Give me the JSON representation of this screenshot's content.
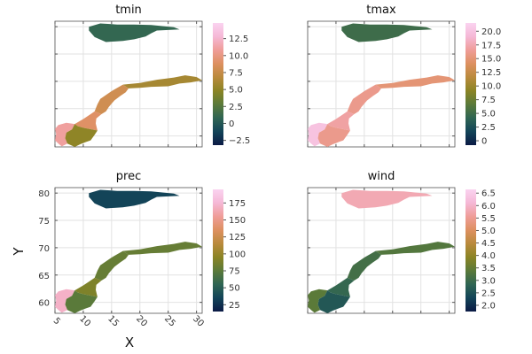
{
  "figure": {
    "xlabel": "X",
    "ylabel": "Y"
  },
  "colorscale": [
    "#0b1a45",
    "#134458",
    "#2f6553",
    "#5a7a3a",
    "#8a8425",
    "#b98a3c",
    "#dd9060",
    "#ef9d98",
    "#f5b8d6",
    "#fad3f0"
  ],
  "chart_data": [
    {
      "type": "heatmap",
      "title": "tmin",
      "xlim": [
        5,
        31
      ],
      "ylim": [
        58,
        81
      ],
      "colorbar": {
        "range": [
          -3.2,
          14.8
        ],
        "ticks": [
          -2.5,
          0,
          2.5,
          5,
          7.5,
          10,
          12.5
        ],
        "tick_labels": [
          "−2.5",
          "0",
          "2.5",
          "5.0",
          "7.5",
          "10.0",
          "12.5"
        ]
      },
      "value_by_region": {
        "svalbard": 1,
        "far_north": 6,
        "north": 8,
        "middle": 9,
        "south_coast": 11,
        "south_inland": 5
      }
    },
    {
      "type": "heatmap",
      "title": "tmax",
      "xlim": [
        5,
        31
      ],
      "ylim": [
        58,
        81
      ],
      "colorbar": {
        "range": [
          -0.8,
          21.5
        ],
        "ticks": [
          0,
          2.5,
          5,
          7.5,
          10,
          12.5,
          15,
          17.5,
          20
        ],
        "tick_labels": [
          "0",
          "2.5",
          "5.0",
          "7.5",
          "10.0",
          "12.5",
          "15.0",
          "17.5",
          "20.0"
        ]
      },
      "value_by_region": {
        "svalbard": 5,
        "far_north": 15,
        "north": 16,
        "middle": 17,
        "south_coast": 20,
        "south_inland": 16
      }
    },
    {
      "type": "heatmap",
      "title": "prec",
      "xlim": [
        5,
        31
      ],
      "ylim": [
        58,
        81
      ],
      "colorbar": {
        "range": [
          15,
          195
        ],
        "ticks": [
          25,
          50,
          75,
          100,
          125,
          150,
          175
        ],
        "tick_labels": [
          "25",
          "50",
          "75",
          "100",
          "125",
          "150",
          "175"
        ]
      },
      "value_by_region": {
        "svalbard": 35,
        "far_north": 80,
        "north": 80,
        "middle": 90,
        "south_coast": 170,
        "south_inland": 75
      },
      "xticks": [
        5,
        10,
        15,
        20,
        25,
        30
      ],
      "xtick_labels": [
        "5",
        "10",
        "15",
        "20",
        "25",
        "30"
      ],
      "yticks": [
        60,
        65,
        70,
        75,
        80
      ],
      "ytick_labels": [
        "60",
        "65",
        "70",
        "75",
        "80"
      ]
    },
    {
      "type": "heatmap",
      "title": "wind",
      "xlim": [
        5,
        31
      ],
      "ylim": [
        58,
        81
      ],
      "colorbar": {
        "range": [
          1.75,
          6.65
        ],
        "ticks": [
          2,
          2.5,
          3,
          3.5,
          4,
          4.5,
          5,
          5.5,
          6,
          6.5
        ],
        "tick_labels": [
          "2.0",
          "2.5",
          "3.0",
          "3.5",
          "4.0",
          "4.5",
          "5.0",
          "5.5",
          "6.0",
          "6.5"
        ]
      },
      "value_by_region": {
        "svalbard": 5.8,
        "far_north": 3.3,
        "north": 3.1,
        "middle": 2.9,
        "south_coast": 3.4,
        "south_inland": 2.6
      }
    }
  ]
}
